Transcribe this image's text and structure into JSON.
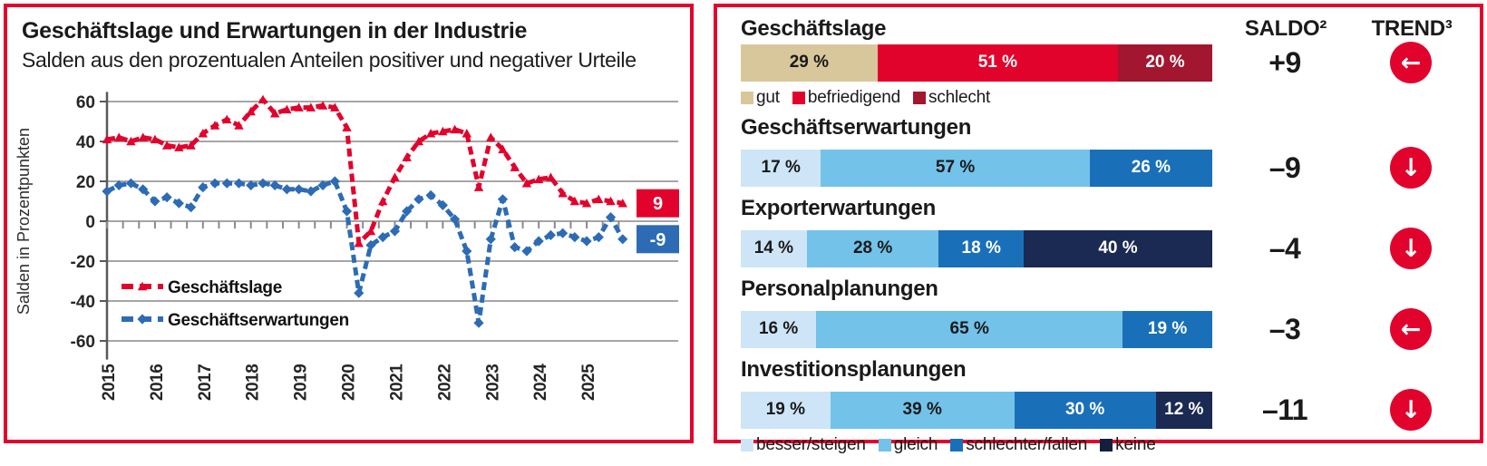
{
  "colors": {
    "accent_red": "#e2032d",
    "dark_red": "#a31630",
    "tan": "#d9c79c",
    "light_blue": "#cde5f6",
    "mid_blue": "#73c2e9",
    "dark_blue": "#1a70b8",
    "navy": "#1b2a52",
    "line_red": "#e2032d",
    "line_blue": "#2d6cb5",
    "grid_gray": "#a6a6a6",
    "axis_gray": "#595959"
  },
  "left_panel": {
    "title": "Geschäftslage und Erwartungen in der Industrie",
    "subtitle": "Salden aus den prozentualen Anteilen positiver und negativer Urteile"
  },
  "chart_data": {
    "type": "line",
    "title": "Geschäftslage und Erwartungen in der Industrie",
    "xlabel": "",
    "ylabel": "Salden in Prozentpunkten",
    "ylim": [
      -60,
      60
    ],
    "xlim": [
      2015,
      2026
    ],
    "x_start": 2015.0,
    "x_step": 0.25,
    "x_last": 2025.75,
    "grid": true,
    "gridlines": [
      60,
      40,
      20,
      0,
      -20,
      -40,
      -60
    ],
    "x_ticks": [
      "2015",
      "2016",
      "2017",
      "2018",
      "2019",
      "2020",
      "2021",
      "2022",
      "2023",
      "2024",
      "2025"
    ],
    "legend_position": "lower left",
    "series": [
      {
        "name": "Geschäftslage",
        "color": "#e2032d",
        "marker": "triangle",
        "values": [
          41,
          42,
          40,
          42,
          41,
          38,
          37,
          38,
          44,
          48,
          51,
          48,
          55,
          61,
          54,
          56,
          57,
          57,
          58,
          57,
          47,
          -11,
          -5,
          10,
          22,
          32,
          40,
          44,
          45,
          46,
          44,
          17,
          42,
          36,
          27,
          19,
          21,
          22,
          14,
          10,
          9,
          11,
          10,
          9
        ]
      },
      {
        "name": "Geschäftserwartungen",
        "color": "#2d6cb5",
        "marker": "diamond",
        "values": [
          15,
          18,
          19,
          16,
          10,
          12,
          9,
          7,
          17,
          19,
          19,
          19,
          18,
          19,
          18,
          16,
          16,
          15,
          18,
          20,
          5,
          -36,
          -12,
          -8,
          -5,
          5,
          11,
          13,
          8,
          1,
          -15,
          -51,
          -9,
          11,
          -13,
          -15,
          -10,
          -7,
          -6,
          -8,
          -10,
          -8,
          2,
          -9
        ]
      }
    ],
    "end_labels": [
      {
        "text": "9",
        "value": 9,
        "color": "#e2032d"
      },
      {
        "text": "-9",
        "value": -9,
        "color": "#2d6cb5"
      }
    ]
  },
  "right_panel": {
    "saldo_header": "SALDO²",
    "trend_header": "TREND³",
    "top_legend": [
      {
        "label": "gut",
        "color": "#d9c79c"
      },
      {
        "label": "befriedigend",
        "color": "#e2032d"
      },
      {
        "label": "schlecht",
        "color": "#a31630"
      }
    ],
    "bottom_legend": [
      {
        "label": "besser/steigen",
        "color": "#cde5f6"
      },
      {
        "label": "gleich",
        "color": "#73c2e9"
      },
      {
        "label": "schlechter/fallen",
        "color": "#1a70b8"
      },
      {
        "label": "keine",
        "color": "#131f3d"
      }
    ],
    "rows": [
      {
        "title": "Geschäftslage",
        "saldo": "+9",
        "trend": "left",
        "trend_glyph": "←",
        "segments": [
          {
            "value": 29,
            "label": "29 %",
            "color": "#d9c79c",
            "text_color": "#1a1a1a"
          },
          {
            "value": 51,
            "label": "51 %",
            "color": "#e2032d",
            "text_color": "#ffffff"
          },
          {
            "value": 20,
            "label": "20 %",
            "color": "#a31630",
            "text_color": "#ffffff"
          }
        ]
      },
      {
        "title": "Geschäftserwartungen",
        "saldo": "–9",
        "trend": "down",
        "trend_glyph": "↓",
        "segments": [
          {
            "value": 17,
            "label": "17 %",
            "color": "#cde5f6",
            "text_color": "#1a1a1a"
          },
          {
            "value": 57,
            "label": "57 %",
            "color": "#73c2e9",
            "text_color": "#1a1a1a"
          },
          {
            "value": 26,
            "label": "26 %",
            "color": "#1a70b8",
            "text_color": "#ffffff"
          }
        ]
      },
      {
        "title": "Exporterwartungen",
        "saldo": "–4",
        "trend": "down",
        "trend_glyph": "↓",
        "segments": [
          {
            "value": 14,
            "label": "14 %",
            "color": "#cde5f6",
            "text_color": "#1a1a1a"
          },
          {
            "value": 28,
            "label": "28 %",
            "color": "#73c2e9",
            "text_color": "#1a1a1a"
          },
          {
            "value": 18,
            "label": "18 %",
            "color": "#1a70b8",
            "text_color": "#ffffff"
          },
          {
            "value": 40,
            "label": "40 %",
            "color": "#1b2a52",
            "text_color": "#ffffff"
          }
        ]
      },
      {
        "title": "Personalplanungen",
        "saldo": "–3",
        "trend": "left",
        "trend_glyph": "←",
        "segments": [
          {
            "value": 16,
            "label": "16 %",
            "color": "#cde5f6",
            "text_color": "#1a1a1a"
          },
          {
            "value": 65,
            "label": "65 %",
            "color": "#73c2e9",
            "text_color": "#1a1a1a"
          },
          {
            "value": 19,
            "label": "19 %",
            "color": "#1a70b8",
            "text_color": "#ffffff"
          }
        ]
      },
      {
        "title": "Investitionsplanungen",
        "saldo": "–11",
        "trend": "down",
        "trend_glyph": "↓",
        "segments": [
          {
            "value": 19,
            "label": "19 %",
            "color": "#cde5f6",
            "text_color": "#1a1a1a"
          },
          {
            "value": 39,
            "label": "39 %",
            "color": "#73c2e9",
            "text_color": "#1a1a1a"
          },
          {
            "value": 30,
            "label": "30 %",
            "color": "#1a70b8",
            "text_color": "#ffffff"
          },
          {
            "value": 12,
            "label": "12 %",
            "color": "#1b2a52",
            "text_color": "#ffffff"
          }
        ]
      }
    ]
  }
}
